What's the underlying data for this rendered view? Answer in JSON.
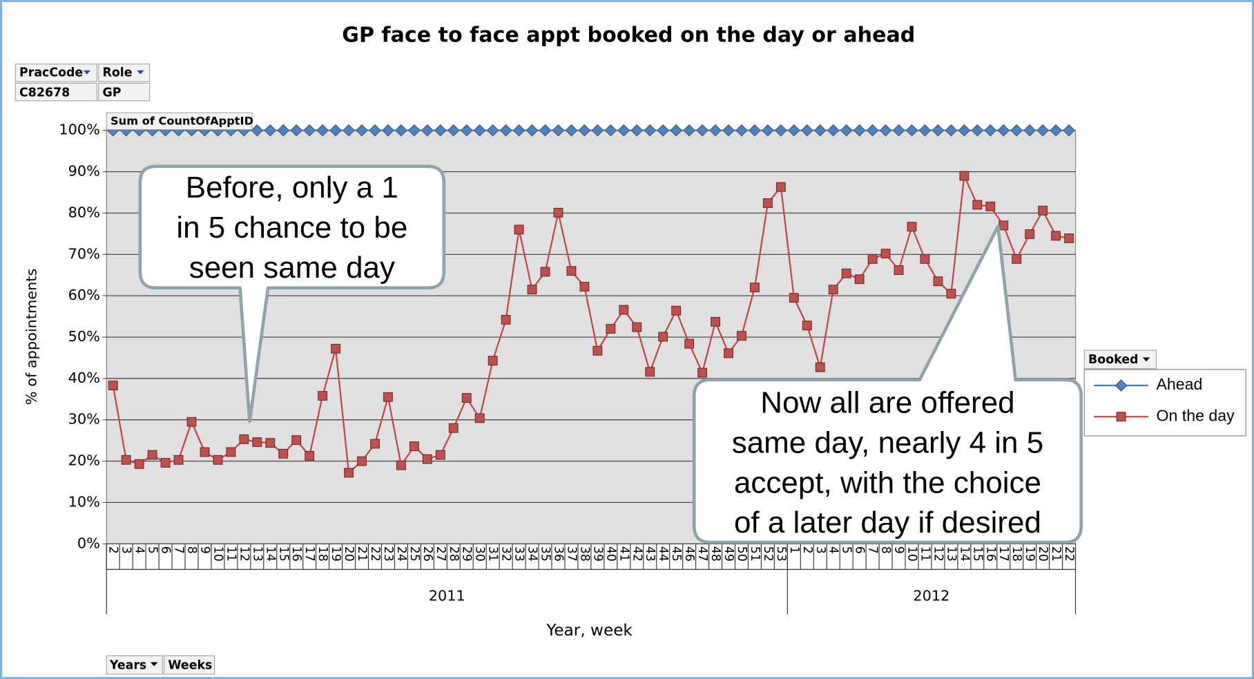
{
  "title": "GP face to face appt booked on the day or ahead",
  "filters": [
    {
      "name": "PracCode",
      "value": "C82678"
    },
    {
      "name": "Role",
      "value": "GP"
    }
  ],
  "row_fields": [
    "Years",
    "Weeks"
  ],
  "chart_data": {
    "type": "line",
    "value_field": "Sum of CountOfApptID",
    "y_label": "% of appointments",
    "x_label": "Year, week",
    "groups": [
      {
        "name": "2011",
        "categories": [
          "2",
          "3",
          "4",
          "5",
          "6",
          "7",
          "8",
          "9",
          "10",
          "11",
          "12",
          "13",
          "14",
          "15",
          "16",
          "17",
          "18",
          "19",
          "20",
          "21",
          "22",
          "23",
          "24",
          "25",
          "26",
          "27",
          "28",
          "29",
          "30",
          "31",
          "32",
          "33",
          "34",
          "35",
          "36",
          "37",
          "38",
          "39",
          "40",
          "41",
          "42",
          "43",
          "44",
          "45",
          "46",
          "47",
          "48",
          "49",
          "50",
          "51",
          "52",
          "53"
        ]
      },
      {
        "name": "2012",
        "categories": [
          "1",
          "2",
          "3",
          "4",
          "5",
          "6",
          "7",
          "8",
          "9",
          "10",
          "11",
          "12",
          "13",
          "14",
          "15",
          "16",
          "17",
          "18",
          "19",
          "20",
          "21",
          "22"
        ]
      }
    ],
    "ylim": [
      0,
      100
    ],
    "yticks": [
      {
        "value": 0,
        "label": "0%"
      },
      {
        "value": 10,
        "label": "10%"
      },
      {
        "value": 20,
        "label": "20%"
      },
      {
        "value": 30,
        "label": "30%"
      },
      {
        "value": 40,
        "label": "40%"
      },
      {
        "value": 50,
        "label": "50%"
      },
      {
        "value": 60,
        "label": "60%"
      },
      {
        "value": 70,
        "label": "70%"
      },
      {
        "value": 80,
        "label": "80%"
      },
      {
        "value": 90,
        "label": "90%"
      },
      {
        "value": 100,
        "label": "100%"
      }
    ],
    "grid": true,
    "legend_title": "Booked",
    "legend_position": "right",
    "series": [
      {
        "name": "Ahead",
        "color": "#4a7ebb",
        "marker": "diamond",
        "marker_color": "#4f81bd",
        "values": [
          100,
          100,
          100,
          100,
          100,
          100,
          100,
          100,
          100,
          100,
          100,
          100,
          100,
          100,
          100,
          100,
          100,
          100,
          100,
          100,
          100,
          100,
          100,
          100,
          100,
          100,
          100,
          100,
          100,
          100,
          100,
          100,
          100,
          100,
          100,
          100,
          100,
          100,
          100,
          100,
          100,
          100,
          100,
          100,
          100,
          100,
          100,
          100,
          100,
          100,
          100,
          100,
          100,
          100,
          100,
          100,
          100,
          100,
          100,
          100,
          100,
          100,
          100,
          100,
          100,
          100,
          100,
          100,
          100,
          100,
          100,
          100,
          100,
          100
        ]
      },
      {
        "name": "On the day",
        "color": "#be4b48",
        "marker": "square",
        "marker_color": "#c0504d",
        "values": [
          38.3,
          20.3,
          19.3,
          21.5,
          19.6,
          20.3,
          29.5,
          22.2,
          20.3,
          22.2,
          25.3,
          24.6,
          24.4,
          21.8,
          25.1,
          21.3,
          35.8,
          47.2,
          17.2,
          20.0,
          24.2,
          35.5,
          19.0,
          23.6,
          20.5,
          21.5,
          28.0,
          35.3,
          30.4,
          44.3,
          54.2,
          76.0,
          61.5,
          65.8,
          80.1,
          66.0,
          62.2,
          46.7,
          52.0,
          56.6,
          52.4,
          41.6,
          50.1,
          56.4,
          48.4,
          41.4,
          53.7,
          46.1,
          50.3,
          62.0,
          82.4,
          86.3,
          59.5,
          52.8,
          42.7,
          61.5,
          65.4,
          64.0,
          68.9,
          70.2,
          66.2,
          76.7,
          68.9,
          63.5,
          60.5,
          89.0,
          82.0,
          81.6,
          77.0,
          68.9,
          74.9,
          80.6,
          74.5,
          73.9
        ]
      }
    ],
    "annotations": [
      {
        "lines": [
          "Before, only a 1",
          "in 5 chance to be",
          "seen same day"
        ]
      },
      {
        "lines": [
          "Now all are offered",
          "same day, nearly 4 in 5",
          "accept, with the choice",
          "of a later day if desired"
        ]
      }
    ]
  }
}
